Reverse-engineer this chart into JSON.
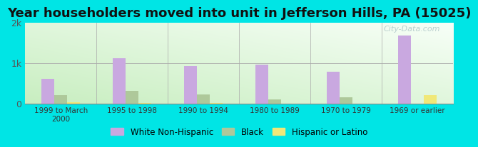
{
  "title": "Year householders moved into unit in Jefferson Hills, PA (15025)",
  "categories": [
    "1999 to March\n2000",
    "1995 to 1998",
    "1990 to 1994",
    "1980 to 1989",
    "1970 to 1979",
    "1969 or earlier"
  ],
  "series": {
    "White Non-Hispanic": [
      620,
      1120,
      920,
      970,
      790,
      1680
    ],
    "Black": [
      210,
      310,
      220,
      110,
      160,
      0
    ],
    "Hispanic or Latino": [
      30,
      20,
      15,
      0,
      0,
      200
    ]
  },
  "colors": {
    "White Non-Hispanic": "#c9a8e0",
    "Black": "#aec89a",
    "Hispanic or Latino": "#f0e878"
  },
  "ylim": [
    0,
    2000
  ],
  "yticks": [
    0,
    1000,
    2000
  ],
  "ytick_labels": [
    "0",
    "1k",
    "2k"
  ],
  "background_color": "#00e5e5",
  "title_fontsize": 13,
  "bar_width": 0.18,
  "legend_entries": [
    "White Non-Hispanic",
    "Black",
    "Hispanic or Latino"
  ],
  "watermark": "City-Data.com"
}
